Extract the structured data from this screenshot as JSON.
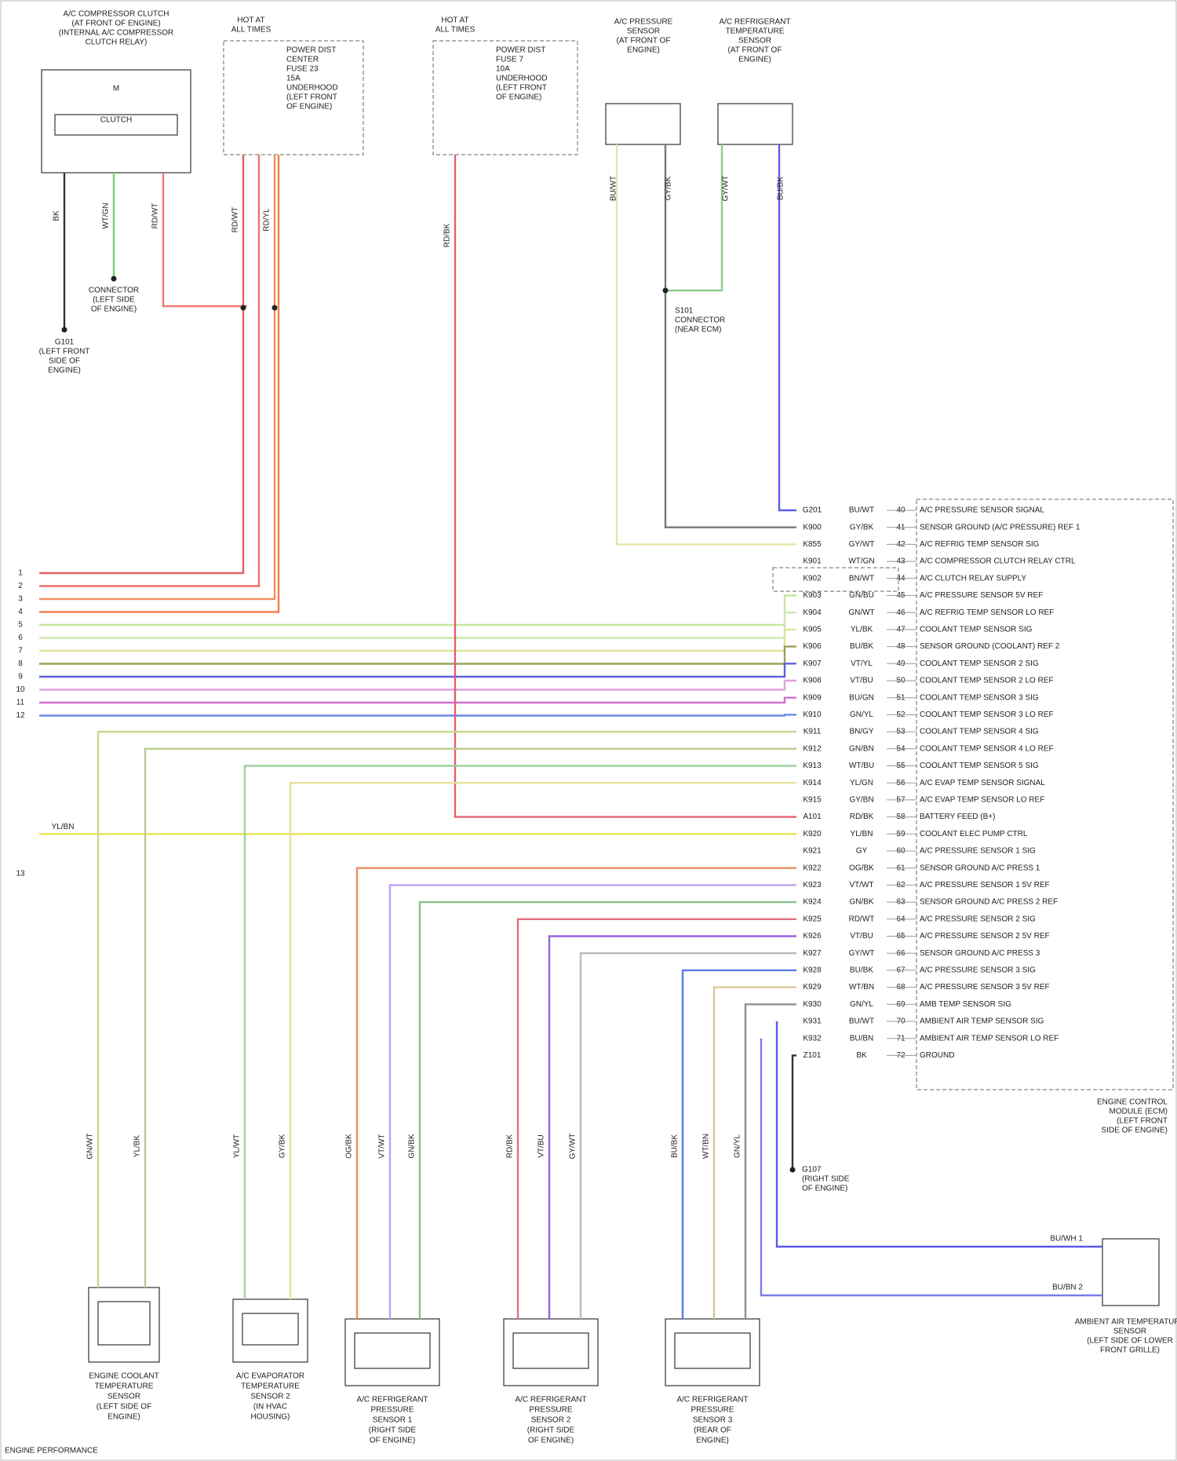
{
  "components": [
    {
      "title": [
        "A/C COMPRESSOR CLUTCH",
        "(AT FRONT OF ENGINE)",
        "(INTERNAL A/C COMPRESSOR",
        "CLUTCH RELAY)"
      ],
      "inner": [
        "M",
        "CLUTCH"
      ],
      "wires": [
        "BK",
        "WT/GN",
        "RD/WT"
      ]
    },
    {
      "title": [
        "HOT AT",
        "ALL TIMES"
      ],
      "inner": [
        "POWER DIST",
        "CENTER",
        "FUSE 23",
        "15A",
        "UNDERHOOD",
        "(LEFT FRONT",
        "OF ENGINE)"
      ],
      "wires": [
        "RD/WT",
        "RD/YL"
      ]
    },
    {
      "title": [
        "HOT AT",
        "ALL TIMES"
      ],
      "inner": [
        "POWER DIST",
        "FUSE 7",
        "10A",
        "UNDERHOOD",
        "(LEFT FRONT",
        "OF ENGINE)"
      ],
      "wires": [
        "RD/BK"
      ]
    },
    {
      "title": [
        "A/C PRESSURE",
        "SENSOR",
        "(AT FRONT OF",
        "ENGINE)"
      ],
      "wires": [
        "BU/WT",
        "GY/BK"
      ]
    },
    {
      "title": [
        "A/C REFRIGERANT",
        "TEMPERATURE",
        "SENSOR",
        "(AT FRONT OF",
        "ENGINE)"
      ],
      "wires": [
        "GY/WT",
        "BU/BK"
      ]
    },
    {
      "title": [
        "ENGINE COOLANT",
        "TEMPERATURE",
        "SENSOR",
        "(LEFT SIDE OF",
        "ENGINE)"
      ],
      "wires": [
        "GN/WT",
        "YL/BK"
      ]
    },
    {
      "title": [
        "A/C EVAPORATOR",
        "TEMPERATURE",
        "SENSOR 2",
        "(IN HVAC",
        "HOUSING)"
      ],
      "wires": [
        "YL/WT",
        "GY/BK"
      ]
    },
    {
      "title": [
        "A/C REFRIGERANT",
        "PRESSURE",
        "SENSOR 1",
        "(RIGHT SIDE",
        "OF ENGINE)"
      ],
      "wires": [
        "OG/BK",
        "VT/WT",
        "GN/BK"
      ]
    },
    {
      "title": [
        "A/C REFRIGERANT",
        "PRESSURE",
        "SENSOR 2",
        "(RIGHT SIDE",
        "OF ENGINE)"
      ],
      "wires": [
        "RD/BK",
        "VT/BU",
        "GY/WT"
      ]
    },
    {
      "title": [
        "A/C REFRIGERANT",
        "PRESSURE",
        "SENSOR 3",
        "(REAR OF",
        "ENGINE)"
      ],
      "wires": [
        "BU/BK",
        "WT/BN",
        "GN/YL"
      ]
    },
    {
      "title": [
        "AMBIENT AIR TEMPERATURE",
        "SENSOR",
        "(LEFT SIDE OF LOWER",
        "FRONT GRILLE)"
      ],
      "wires": [
        "BU/WH 1",
        "BU/BN 2"
      ]
    }
  ],
  "grounds": [
    {
      "label": [
        "G101",
        "(LEFT FRONT",
        "SIDE OF",
        "ENGINE)"
      ]
    },
    {
      "label": [
        "CONNECTOR",
        "(LEFT SIDE",
        "OF ENGINE)"
      ]
    },
    {
      "label": [
        "G107",
        "(RIGHT SIDE",
        "OF ENGINE)"
      ]
    },
    {
      "label": [
        "S101",
        "CONNECTOR",
        "(NEAR ECM)"
      ]
    }
  ],
  "left_pins": [
    "1",
    "2",
    "3",
    "4",
    "5",
    "6",
    "7",
    "8",
    "9",
    "10",
    "11",
    "12",
    "13"
  ],
  "left_wire_label": "YL/BN",
  "connector": {
    "label": [
      "ENGINE CONTROL",
      "MODULE (ECM)",
      "(LEFT FRONT",
      "SIDE OF ENGINE)"
    ],
    "pins": [
      {
        "circuit": "G201",
        "wire": "BU/WT",
        "pin": "40",
        "function": "A/C PRESSURE SENSOR SIGNAL"
      },
      {
        "circuit": "K900",
        "wire": "GY/BK",
        "pin": "41",
        "function": "SENSOR GROUND (A/C PRESSURE) REF 1"
      },
      {
        "circuit": "K855",
        "wire": "GY/WT",
        "pin": "42",
        "function": "A/C REFRIG TEMP SENSOR SIG"
      },
      {
        "circuit": "K901",
        "wire": "WT/GN",
        "pin": "43",
        "function": "A/C COMPRESSOR CLUTCH RELAY CTRL"
      },
      {
        "circuit": "K902",
        "wire": "BN/WT",
        "pin": "44",
        "function": "A/C CLUTCH RELAY SUPPLY"
      },
      {
        "circuit": "K903",
        "wire": "GN/BU",
        "pin": "45",
        "function": "A/C PRESSURE SENSOR 5V REF"
      },
      {
        "circuit": "K904",
        "wire": "GN/WT",
        "pin": "46",
        "function": "A/C REFRIG TEMP SENSOR LO REF"
      },
      {
        "circuit": "K905",
        "wire": "YL/BK",
        "pin": "47",
        "function": "COOLANT TEMP SENSOR SIG"
      },
      {
        "circuit": "K906",
        "wire": "BU/BK",
        "pin": "48",
        "function": "SENSOR GROUND (COOLANT) REF 2"
      },
      {
        "circuit": "K907",
        "wire": "VT/YL",
        "pin": "49",
        "function": "COOLANT TEMP SENSOR 2 SIG"
      },
      {
        "circuit": "K908",
        "wire": "VT/BU",
        "pin": "50",
        "function": "COOLANT TEMP SENSOR 2 LO REF"
      },
      {
        "circuit": "K909",
        "wire": "BU/GN",
        "pin": "51",
        "function": "COOLANT TEMP SENSOR 3 SIG"
      },
      {
        "circuit": "K910",
        "wire": "GN/YL",
        "pin": "52",
        "function": "COOLANT TEMP SENSOR 3 LO REF"
      },
      {
        "circuit": "K911",
        "wire": "BN/GY",
        "pin": "53",
        "function": "COOLANT TEMP SENSOR 4 SIG"
      },
      {
        "circuit": "K912",
        "wire": "GN/BN",
        "pin": "54",
        "function": "COOLANT TEMP SENSOR 4 LO REF"
      },
      {
        "circuit": "K913",
        "wire": "WT/BU",
        "pin": "55",
        "function": "COOLANT TEMP SENSOR 5 SIG"
      },
      {
        "circuit": "K914",
        "wire": "YL/GN",
        "pin": "56",
        "function": "A/C EVAP TEMP SENSOR SIGNAL"
      },
      {
        "circuit": "K915",
        "wire": "GY/BN",
        "pin": "57",
        "function": "A/C EVAP TEMP SENSOR LO REF"
      },
      {
        "circuit": "A101",
        "wire": "RD/BK",
        "pin": "58",
        "function": "BATTERY FEED (B+)"
      },
      {
        "circuit": "K920",
        "wire": "YL/BN",
        "pin": "59",
        "function": "COOLANT ELEC PUMP CTRL"
      },
      {
        "circuit": "K921",
        "wire": "GY",
        "pin": "60",
        "function": "A/C PRESSURE SENSOR 1 SIG"
      },
      {
        "circuit": "K922",
        "wire": "OG/BK",
        "pin": "61",
        "function": "SENSOR GROUND A/C PRESS 1"
      },
      {
        "circuit": "K923",
        "wire": "VT/WT",
        "pin": "62",
        "function": "A/C PRESSURE SENSOR 1 5V REF"
      },
      {
        "circuit": "K924",
        "wire": "GN/BK",
        "pin": "63",
        "function": "SENSOR GROUND A/C PRESS 2 REF"
      },
      {
        "circuit": "K925",
        "wire": "RD/WT",
        "pin": "64",
        "function": "A/C PRESSURE SENSOR 2 SIG"
      },
      {
        "circuit": "K926",
        "wire": "VT/BU",
        "pin": "65",
        "function": "A/C PRESSURE SENSOR 2 5V REF"
      },
      {
        "circuit": "K927",
        "wire": "GY/WT",
        "pin": "66",
        "function": "SENSOR GROUND A/C PRESS 3"
      },
      {
        "circuit": "K928",
        "wire": "BU/BK",
        "pin": "67",
        "function": "A/C PRESSURE SENSOR 3 SIG"
      },
      {
        "circuit": "K929",
        "wire": "WT/BN",
        "pin": "68",
        "function": "A/C PRESSURE SENSOR 3 5V REF"
      },
      {
        "circuit": "K930",
        "wire": "GN/YL",
        "pin": "69",
        "function": "AMB TEMP SENSOR SIG"
      },
      {
        "circuit": "K931",
        "wire": "BU/WT",
        "pin": "70",
        "function": "AMBIENT AIR TEMP SENSOR SIG"
      },
      {
        "circuit": "K932",
        "wire": "BU/BN",
        "pin": "71",
        "function": "AMBIENT AIR TEMP SENSOR LO REF"
      },
      {
        "circuit": "Z101",
        "wire": "BK",
        "pin": "72",
        "function": "GROUND"
      }
    ]
  },
  "footer": "ENGINE PERFORMANCE"
}
